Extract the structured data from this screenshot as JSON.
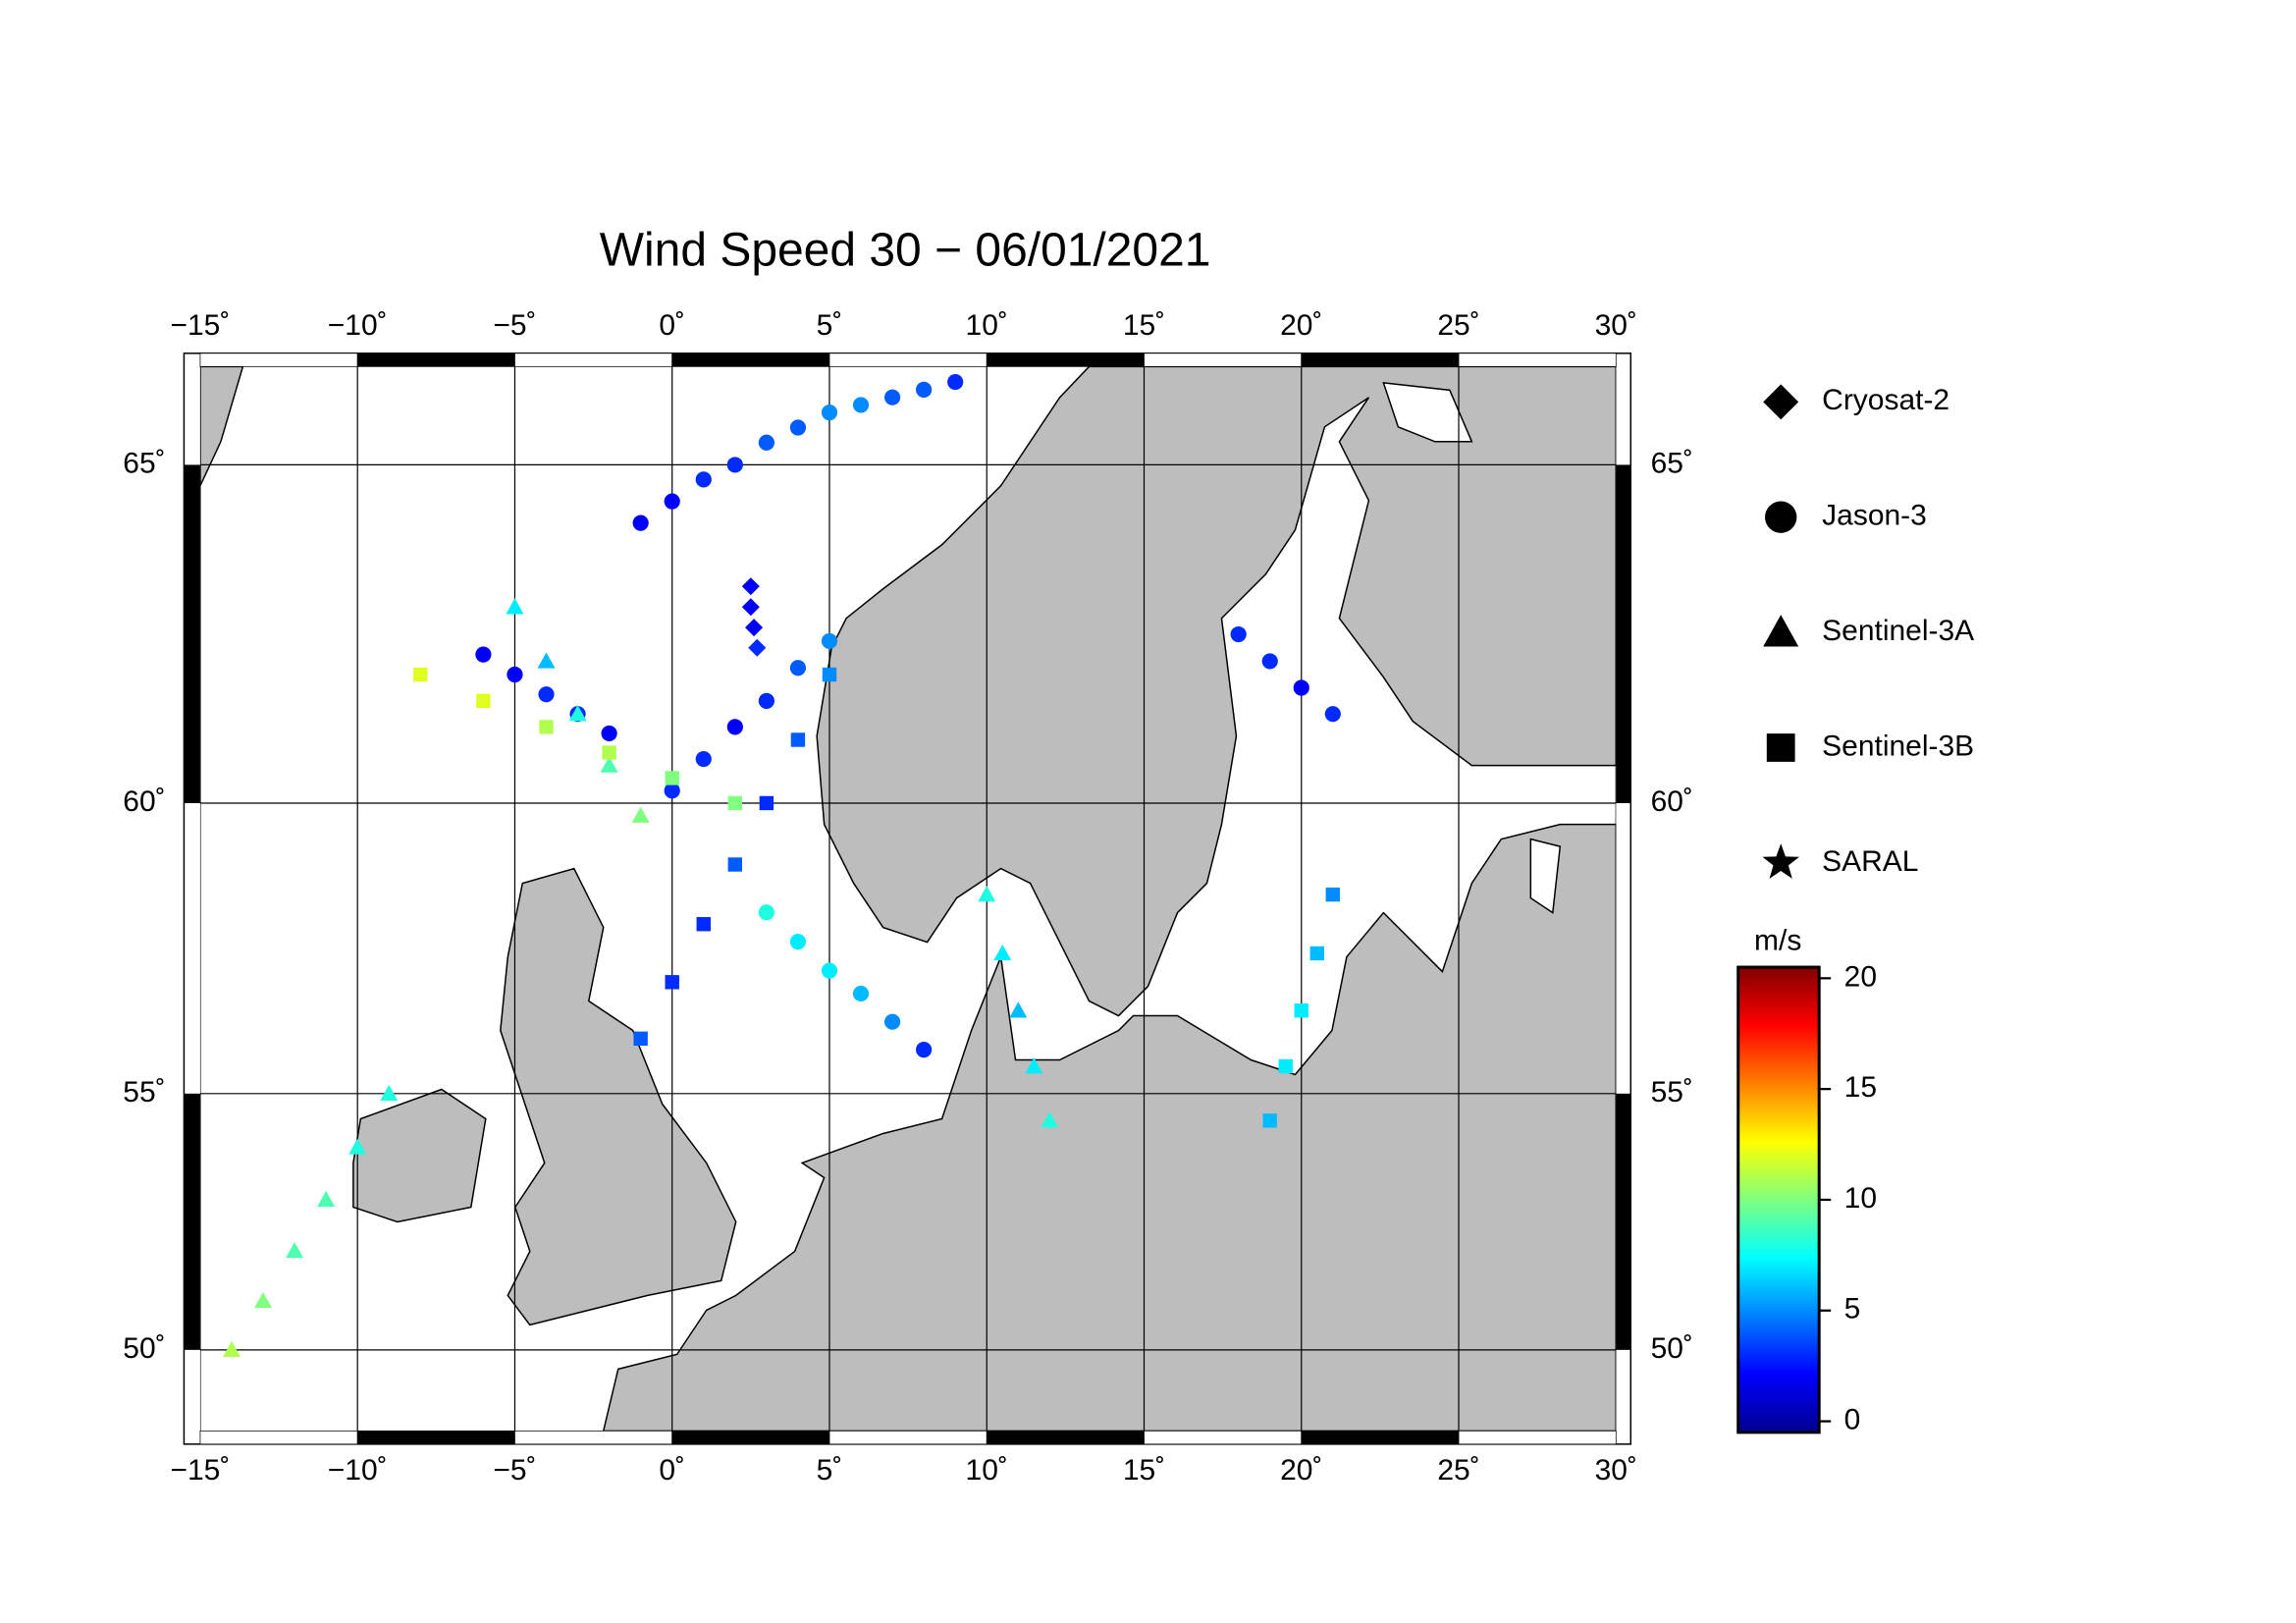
{
  "chart_data": {
    "type": "map",
    "title": "Wind Speed 30 − 06/01/2021",
    "lonlim": [
      -15,
      30
    ],
    "latlim": [
      48.3,
      66.3
    ],
    "lonticks": [
      {
        "value": -15,
        "label": "−15˚"
      },
      {
        "value": -10,
        "label": "−10˚"
      },
      {
        "value": -5,
        "label": "−5˚"
      },
      {
        "value": 0,
        "label": "0˚"
      },
      {
        "value": 5,
        "label": "5˚"
      },
      {
        "value": 10,
        "label": "10˚"
      },
      {
        "value": 15,
        "label": "15˚"
      },
      {
        "value": 20,
        "label": "20˚"
      },
      {
        "value": 25,
        "label": "25˚"
      },
      {
        "value": 30,
        "label": "30˚"
      }
    ],
    "latticks": [
      {
        "value": 50,
        "label": "50˚"
      },
      {
        "value": 55,
        "label": "55˚"
      },
      {
        "value": 60,
        "label": "60˚"
      },
      {
        "value": 65,
        "label": "65˚"
      }
    ],
    "grid": true,
    "colorbar": {
      "label": "m/s",
      "clim": [
        -0.5,
        20.5
      ],
      "ticks": [
        0,
        5,
        10,
        15,
        20
      ],
      "colormap": "jet"
    },
    "series": [
      {
        "name": "Cryosat-2",
        "marker": "diamond",
        "tracks": [
          {
            "lon": [
              2.5,
              2.5,
              2.6,
              2.7
            ],
            "lat": [
              63.3,
              63.0,
              62.7,
              62.4
            ],
            "values": [
              2,
              2,
              2,
              3
            ]
          }
        ]
      },
      {
        "name": "Jason-3",
        "marker": "circle",
        "tracks": [
          {
            "lon": [
              -1,
              0,
              1,
              2,
              3,
              4,
              5,
              6,
              7,
              8,
              9
            ],
            "lat": [
              64.2,
              64.5,
              64.8,
              65.0,
              65.3,
              65.5,
              65.7,
              65.8,
              65.9,
              66.0,
              66.1
            ],
            "values": [
              2,
              2,
              3,
              3,
              4,
              4,
              5,
              5,
              4,
              4,
              3
            ]
          },
          {
            "lon": [
              0,
              1,
              2,
              3,
              4,
              5
            ],
            "lat": [
              60.2,
              60.7,
              61.2,
              61.6,
              62.1,
              62.5
            ],
            "values": [
              3,
              3,
              2,
              3,
              4,
              5
            ]
          },
          {
            "lon": [
              -6,
              -5,
              -4,
              -3,
              -2
            ],
            "lat": [
              62.3,
              62.0,
              61.7,
              61.4,
              61.1
            ],
            "values": [
              2,
              2,
              3,
              3,
              2
            ]
          },
          {
            "lon": [
              18,
              19,
              20,
              21
            ],
            "lat": [
              62.6,
              62.2,
              61.8,
              61.4
            ],
            "values": [
              3,
              3,
              2,
              3
            ]
          },
          {
            "lon": [
              3,
              4,
              5,
              6,
              7,
              8
            ],
            "lat": [
              58.2,
              57.7,
              57.2,
              56.8,
              56.3,
              55.8
            ],
            "values": [
              8,
              7,
              7,
              6,
              5,
              3
            ]
          }
        ]
      },
      {
        "name": "Sentinel-3A",
        "marker": "triangle",
        "tracks": [
          {
            "lon": [
              -14,
              -13,
              -12,
              -11,
              -10,
              -9
            ],
            "lat": [
              50,
              51,
              52,
              53,
              54,
              55
            ],
            "values": [
              11,
              10,
              9,
              9,
              8,
              8
            ]
          },
          {
            "lon": [
              -5,
              -4,
              -3,
              -2,
              -1
            ],
            "lat": [
              63,
              62.2,
              61.4,
              60.6,
              59.8
            ],
            "values": [
              7,
              6,
              8,
              9,
              10
            ]
          },
          {
            "lon": [
              10,
              10.5,
              11,
              11.5,
              12
            ],
            "lat": [
              58.5,
              57.5,
              56.5,
              55.5,
              54.5
            ],
            "values": [
              8,
              7,
              6,
              7,
              8
            ]
          }
        ]
      },
      {
        "name": "Sentinel-3B",
        "marker": "square",
        "tracks": [
          {
            "lon": [
              -1,
              0,
              1,
              2,
              3,
              4,
              5
            ],
            "lat": [
              56,
              57,
              58,
              59,
              60,
              61,
              62
            ],
            "values": [
              4,
              3,
              3,
              4,
              3,
              4,
              5
            ]
          },
          {
            "lon": [
              19,
              19.5,
              20,
              20.5,
              21
            ],
            "lat": [
              54.5,
              55.5,
              56.5,
              57.5,
              58.5
            ],
            "values": [
              6,
              7,
              7,
              6,
              5
            ]
          },
          {
            "lon": [
              -8,
              -6,
              -4,
              -2,
              0,
              2
            ],
            "lat": [
              62,
              61.6,
              61.2,
              60.8,
              60.4,
              60.0
            ],
            "values": [
              12,
              12,
              11,
              11,
              10,
              10
            ]
          }
        ]
      },
      {
        "name": "SARAL",
        "marker": "star",
        "tracks": []
      }
    ]
  }
}
